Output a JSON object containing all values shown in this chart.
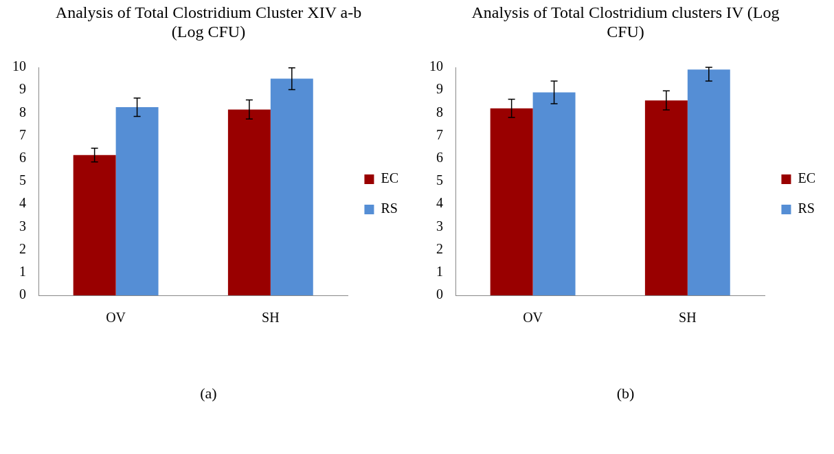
{
  "chart_data": [
    {
      "type": "bar",
      "title": "Analysis of Total Clostridium Cluster XIV a-b (Log CFU)",
      "categories": [
        "OV",
        "SH"
      ],
      "series": [
        {
          "name": "EC",
          "color": "#990000",
          "values": [
            6.15,
            8.15
          ],
          "errors": [
            0.3,
            0.42
          ]
        },
        {
          "name": "RS",
          "color": "#558ed5",
          "values": [
            8.25,
            9.5
          ],
          "errors": [
            0.4,
            0.48
          ]
        }
      ],
      "ylim": [
        0,
        10
      ],
      "yticks": [
        0,
        1,
        2,
        3,
        4,
        5,
        6,
        7,
        8,
        9,
        10
      ],
      "legend": "right",
      "annotations": [
        "(a)"
      ]
    },
    {
      "type": "bar",
      "title": "Analysis of Total Clostridium clusters IV (Log CFU)",
      "categories": [
        "OV",
        "SH"
      ],
      "series": [
        {
          "name": "EC",
          "color": "#990000",
          "values": [
            8.2,
            8.55
          ],
          "errors": [
            0.4,
            0.42
          ]
        },
        {
          "name": "RS",
          "color": "#558ed5",
          "values": [
            8.9,
            9.9
          ],
          "errors": [
            0.5,
            [
              9.4,
              10
            ]
          ]
        }
      ],
      "ylim": [
        0,
        10
      ],
      "yticks": [
        0,
        1,
        2,
        3,
        4,
        5,
        6,
        7,
        8,
        9,
        10
      ],
      "legend": "right",
      "annotations": [
        "(b)"
      ]
    }
  ]
}
